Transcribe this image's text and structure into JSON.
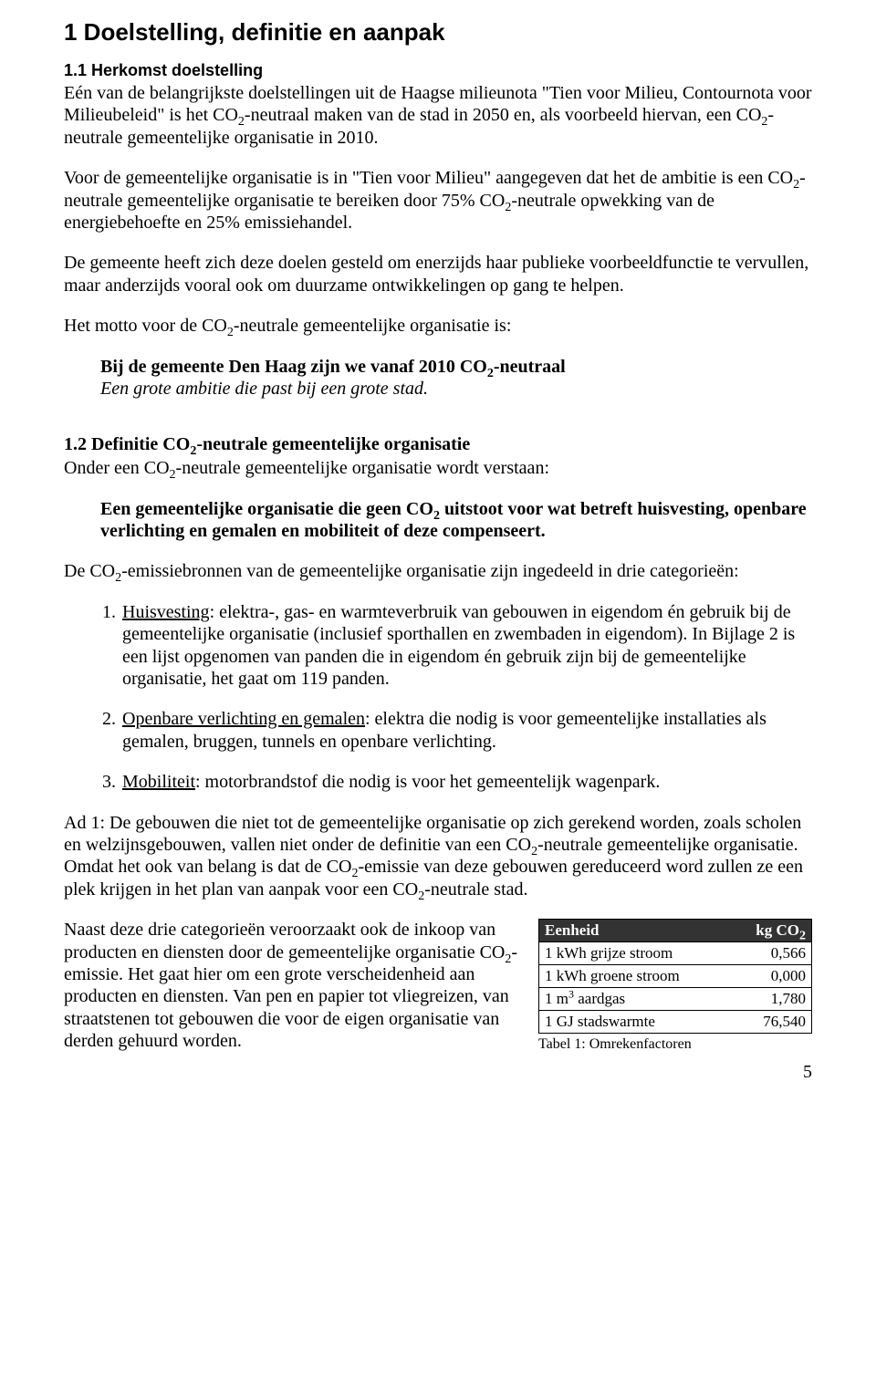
{
  "h1": "1  Doelstelling, definitie en aanpak",
  "s11_title": "1.1  Herkomst doelstelling",
  "s11_p1a": "Eén van de belangrijkste doelstellingen uit de Haagse milieunota \"Tien voor Milieu, Contournota voor Milieubeleid\" is het CO",
  "s11_p1b": "-neutraal maken van de stad in 2050 en, als voorbeeld hiervan, een CO",
  "s11_p1c": "-neutrale gemeentelijke organisatie in 2010.",
  "s11_p2a": "Voor de gemeentelijke organisatie is in \"Tien voor Milieu\" aangegeven dat het de ambitie is een CO",
  "s11_p2b": "-neutrale gemeentelijke organisatie te bereiken door 75% CO",
  "s11_p2c": "-neutrale opwekking van de energiebehoefte en 25% emissiehandel.",
  "s11_p3": "De gemeente heeft zich deze doelen gesteld om enerzijds haar publieke voorbeeldfunctie te vervullen, maar anderzijds vooral ook om duurzame ontwikkelingen op gang te helpen.",
  "s11_p4a": "Het motto voor de CO",
  "s11_p4b": "-neutrale gemeentelijke organisatie is:",
  "motto_bold_a": "Bij de gemeente Den Haag zijn we vanaf 2010 CO",
  "motto_bold_b": "-neutraal",
  "motto_italic": "Een grote ambitie die past bij een grote stad.",
  "s12_title_a": "1.2   Definitie CO",
  "s12_title_b": "-neutrale gemeentelijke organisatie",
  "s12_p1a": "Onder een CO",
  "s12_p1b": "-neutrale gemeentelijke organisatie wordt verstaan:",
  "def_a": "Een gemeentelijke organisatie die geen CO",
  "def_b": " uitstoot voor wat betreft huisvesting, openbare verlichting en gemalen en mobiliteit of deze compenseert.",
  "s12_p2a": "De CO",
  "s12_p2b": "-emissiebronnen van de gemeentelijke organisatie zijn ingedeeld in drie categorieën:",
  "li1_u": "Huisvesting",
  "li1_rest": ": elektra-, gas- en warmteverbruik van gebouwen in eigendom én gebruik bij de gemeentelijke organisatie (inclusief sporthallen en zwembaden in eigendom). In Bijlage 2 is een lijst opgenomen van panden die in eigendom én gebruik zijn bij de gemeentelijke organisatie, het gaat om 119 panden.",
  "li2_u": "Openbare verlichting en gemalen",
  "li2_rest": ": elektra die nodig is voor gemeentelijke installaties als gemalen, bruggen, tunnels en openbare verlichting.",
  "li3_u": "Mobiliteit",
  "li3_rest": ": motorbrandstof die nodig is voor het gemeentelijk wagenpark.",
  "ad1_a": "Ad 1: De gebouwen die niet tot de gemeentelijke organisatie op zich gerekend worden, zoals scholen en welzijnsgebouwen, vallen niet onder de definitie van een CO",
  "ad1_b": "-neutrale gemeentelijke organisatie.",
  "ad1_c": "Omdat het ook van belang is dat de CO",
  "ad1_d": "-emissie van deze gebouwen gereduceerd word zullen ze een plek krijgen in het plan van aanpak voor een CO",
  "ad1_e": "-neutrale stad.",
  "bottom_a": "Naast deze drie categorieën veroorzaakt ook de inkoop van producten en diensten door de gemeentelijke organisatie CO",
  "bottom_b": "-emissie. Het gaat hier om een grote verscheidenheid aan producten en diensten. Van pen en papier tot vliegreizen, van straatstenen tot gebouwen die voor de eigen organisatie van derden gehuurd worden.",
  "table": {
    "header_bg": "#333333",
    "header_color": "#ffffff",
    "col1": "Eenheid",
    "col2_a": "kg CO",
    "rows": [
      {
        "label": "1 kWh grijze stroom",
        "value": "0,566"
      },
      {
        "label": "1 kWh groene stroom",
        "value": "0,000"
      },
      {
        "label_a": "1 m",
        "label_sup": "3",
        "label_b": " aardgas",
        "value": "1,780"
      },
      {
        "label": "1 GJ stadswarmte",
        "value": "76,540"
      }
    ],
    "caption": "Tabel 1: Omrekenfactoren"
  },
  "page_number": "5"
}
